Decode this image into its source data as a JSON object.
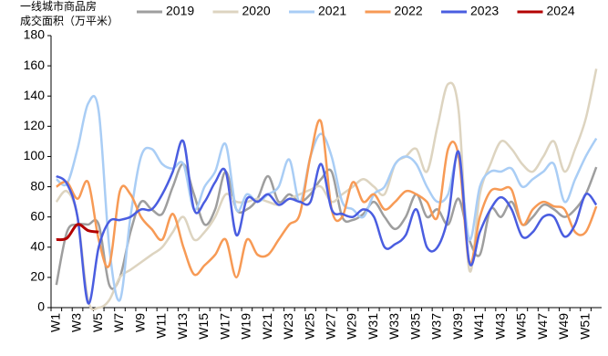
{
  "chart_data": {
    "type": "line",
    "ylabel": [
      "一线城市商品房",
      "成交面积（万平米）"
    ],
    "categories": [
      "W1",
      null,
      "W3",
      null,
      "W5",
      null,
      "W7",
      null,
      "W9",
      null,
      "W11",
      null,
      "W13",
      null,
      "W15",
      null,
      "W17",
      null,
      "W19",
      null,
      "W21",
      null,
      "W23",
      null,
      "W25",
      null,
      "W27",
      null,
      "W29",
      null,
      "W31",
      null,
      "W33",
      null,
      "W35",
      null,
      "W37",
      null,
      "W39",
      null,
      "W41",
      null,
      "W43",
      null,
      "W45",
      null,
      "W47",
      null,
      "W49",
      null,
      "W51",
      null
    ],
    "series": [
      {
        "name": "2019",
        "color": "#9e9e9e",
        "values": [
          15,
          50,
          55,
          55,
          55,
          15,
          20,
          50,
          70,
          65,
          62,
          80,
          95,
          75,
          55,
          65,
          90,
          65,
          65,
          72,
          87,
          70,
          75,
          70,
          75,
          85,
          90,
          60,
          58,
          62,
          70,
          60,
          52,
          60,
          75,
          60,
          65,
          55,
          72,
          45,
          35,
          65,
          60,
          70,
          55,
          60,
          68,
          65,
          60,
          65,
          75,
          93
        ]
      },
      {
        "name": "2020",
        "color": "#ddd4c0",
        "values": [
          70,
          77,
          60,
          5,
          0,
          5,
          20,
          25,
          30,
          35,
          40,
          50,
          60,
          45,
          50,
          60,
          75,
          70,
          70,
          72,
          70,
          68,
          72,
          75,
          78,
          80,
          70,
          75,
          80,
          85,
          80,
          75,
          95,
          100,
          105,
          90,
          120,
          148,
          130,
          25,
          75,
          95,
          110,
          105,
          95,
          90,
          100,
          110,
          90,
          105,
          125,
          158
        ]
      },
      {
        "name": "2021",
        "color": "#a9cdf5",
        "values": [
          85,
          82,
          105,
          135,
          130,
          40,
          5,
          60,
          100,
          105,
          95,
          92,
          95,
          65,
          80,
          90,
          108,
          65,
          75,
          70,
          75,
          80,
          98,
          70,
          100,
          115,
          100,
          70,
          65,
          60,
          75,
          80,
          95,
          100,
          95,
          80,
          70,
          75,
          100,
          45,
          80,
          90,
          90,
          92,
          80,
          85,
          90,
          95,
          70,
          85,
          100,
          112
        ]
      },
      {
        "name": "2022",
        "color": "#f79a55",
        "values": [
          80,
          83,
          72,
          83,
          45,
          28,
          77,
          75,
          60,
          52,
          45,
          62,
          40,
          22,
          28,
          35,
          45,
          20,
          45,
          35,
          35,
          45,
          55,
          62,
          100,
          123,
          65,
          60,
          83,
          70,
          75,
          65,
          70,
          77,
          75,
          70,
          60,
          105,
          100,
          30,
          60,
          77,
          78,
          78,
          55,
          65,
          70,
          67,
          65,
          50,
          50,
          67
        ]
      },
      {
        "name": "2023",
        "color": "#4a5de0",
        "values": [
          87,
          82,
          60,
          3,
          40,
          57,
          58,
          60,
          65,
          65,
          75,
          90,
          110,
          65,
          70,
          83,
          90,
          48,
          72,
          70,
          75,
          68,
          72,
          70,
          70,
          95,
          65,
          62,
          60,
          65,
          60,
          40,
          42,
          48,
          65,
          40,
          40,
          60,
          103,
          30,
          50,
          65,
          73,
          65,
          47,
          50,
          60,
          60,
          47,
          55,
          75,
          68
        ]
      },
      {
        "name": "2024",
        "color": "#b30000",
        "values": [
          45,
          46,
          55,
          51,
          50,
          null,
          null,
          null,
          null,
          null,
          null,
          null,
          null,
          null,
          null,
          null,
          null,
          null,
          null,
          null,
          null,
          null,
          null,
          null,
          null,
          null,
          null,
          null,
          null,
          null,
          null,
          null,
          null,
          null,
          null,
          null,
          null,
          null,
          null,
          null,
          null,
          null,
          null,
          null,
          null,
          null,
          null,
          null,
          null,
          null,
          null,
          null
        ]
      }
    ],
    "ylim": [
      0,
      180
    ],
    "yticks": [
      0,
      20,
      40,
      60,
      80,
      100,
      120,
      140,
      160,
      180
    ]
  }
}
